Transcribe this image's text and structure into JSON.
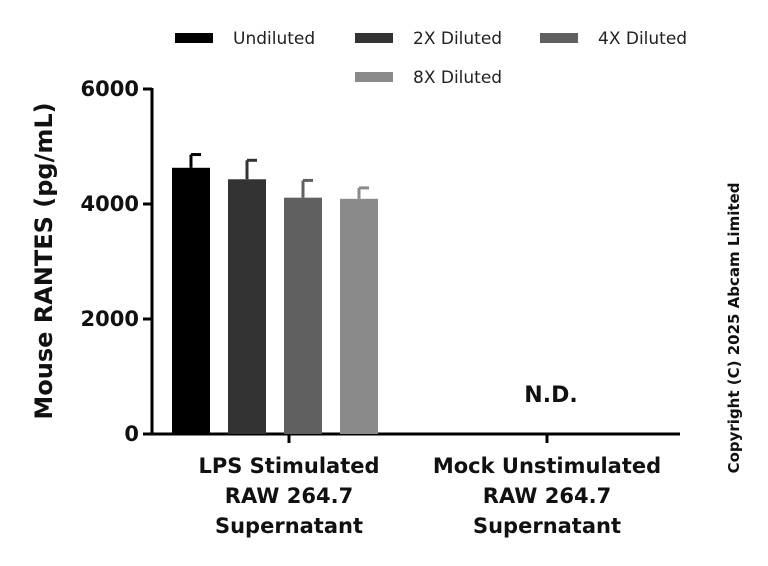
{
  "chart_data": {
    "type": "bar",
    "categories": [
      [
        "LPS Stimulated",
        "RAW 264.7",
        "Supernatant"
      ],
      [
        "Mock Unstimulated",
        "RAW 264.7",
        "Supernatant"
      ]
    ],
    "ylabel": "Mouse RANTES (pg/mL)",
    "ylim": [
      0,
      6000
    ],
    "yticks": [
      0,
      2000,
      4000,
      6000
    ],
    "grid": false,
    "legend_position": "top",
    "series": [
      {
        "name": "Undiluted",
        "color": "#000000",
        "values": [
          4630,
          null
        ],
        "errors": [
          230,
          null
        ]
      },
      {
        "name": "2X Diluted",
        "color": "#333333",
        "values": [
          4430,
          null
        ],
        "errors": [
          330,
          null
        ]
      },
      {
        "name": "4X Diluted",
        "color": "#606060",
        "values": [
          4110,
          null
        ],
        "errors": [
          300,
          null
        ]
      },
      {
        "name": "8X Diluted",
        "color": "#8a8a8a",
        "values": [
          4090,
          null
        ],
        "errors": [
          190,
          null
        ]
      }
    ],
    "annotations": [
      {
        "category_index": 1,
        "text": "N.D."
      }
    ],
    "copyright": "Copyright (C) 2025 Abcam Limited"
  }
}
